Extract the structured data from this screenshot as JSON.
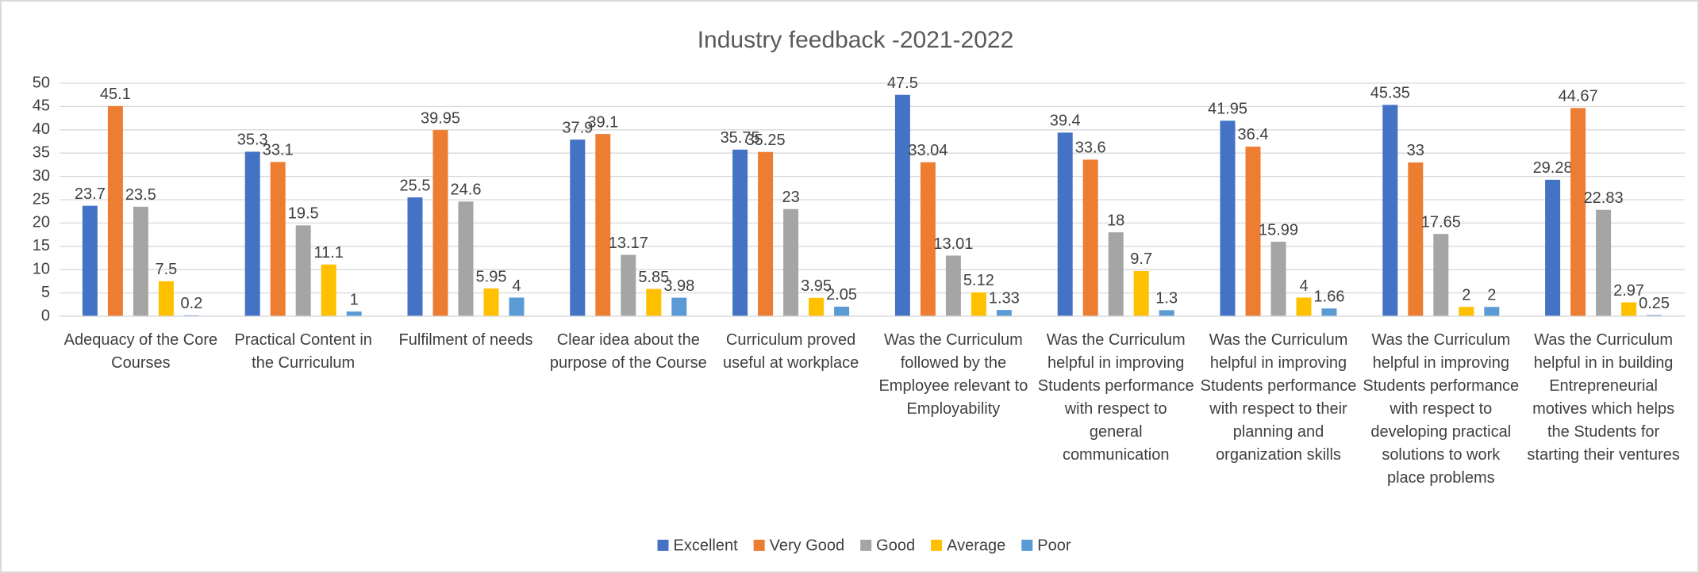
{
  "chart_data": {
    "type": "bar",
    "title": "Industry feedback -2021-2022",
    "categories": [
      "Adequacy of the Core Courses",
      "Practical Content in the Curriculum",
      "Fulfilment of needs",
      "Clear idea about the purpose of the Course",
      "Curriculum proved useful at workplace",
      "Was the Curriculum followed by the Employee relevant to Employability",
      "Was the Curriculum helpful in improving Students performance with respect to general communication",
      "Was the Curriculum helpful in  improving Students performance with respect to their planning and organization skills",
      "Was the Curriculum helpful in improving Students performance with respect to developing practical solutions to work place problems",
      "Was the Curriculum helpful in  in building Entrepreneurial motives which helps the Students for starting their ventures"
    ],
    "series": [
      {
        "name": "Excellent",
        "color": "#4472c4",
        "values": [
          23.7,
          35.3,
          25.5,
          37.9,
          35.75,
          47.5,
          39.4,
          41.95,
          45.35,
          29.28
        ]
      },
      {
        "name": "Very Good",
        "color": "#ed7d31",
        "values": [
          45.1,
          33.1,
          39.95,
          39.1,
          35.25,
          33.04,
          33.6,
          36.4,
          33,
          44.67
        ]
      },
      {
        "name": "Good",
        "color": "#a5a5a5",
        "values": [
          23.5,
          19.5,
          24.6,
          13.17,
          23,
          13.01,
          18,
          15.99,
          17.65,
          22.83
        ]
      },
      {
        "name": "Average",
        "color": "#ffc000",
        "values": [
          7.5,
          11.1,
          5.95,
          5.85,
          3.95,
          5.12,
          9.7,
          4,
          2,
          2.97
        ]
      },
      {
        "name": "Poor",
        "color": "#5b9bd5",
        "values": [
          0.2,
          1,
          4,
          3.98,
          2.05,
          1.33,
          1.3,
          1.66,
          2,
          0.25
        ]
      }
    ],
    "ylim": [
      0,
      50
    ],
    "yticks": [
      0,
      5,
      10,
      15,
      20,
      25,
      30,
      35,
      40,
      45,
      50
    ],
    "grid": true,
    "legend": "bottom"
  }
}
